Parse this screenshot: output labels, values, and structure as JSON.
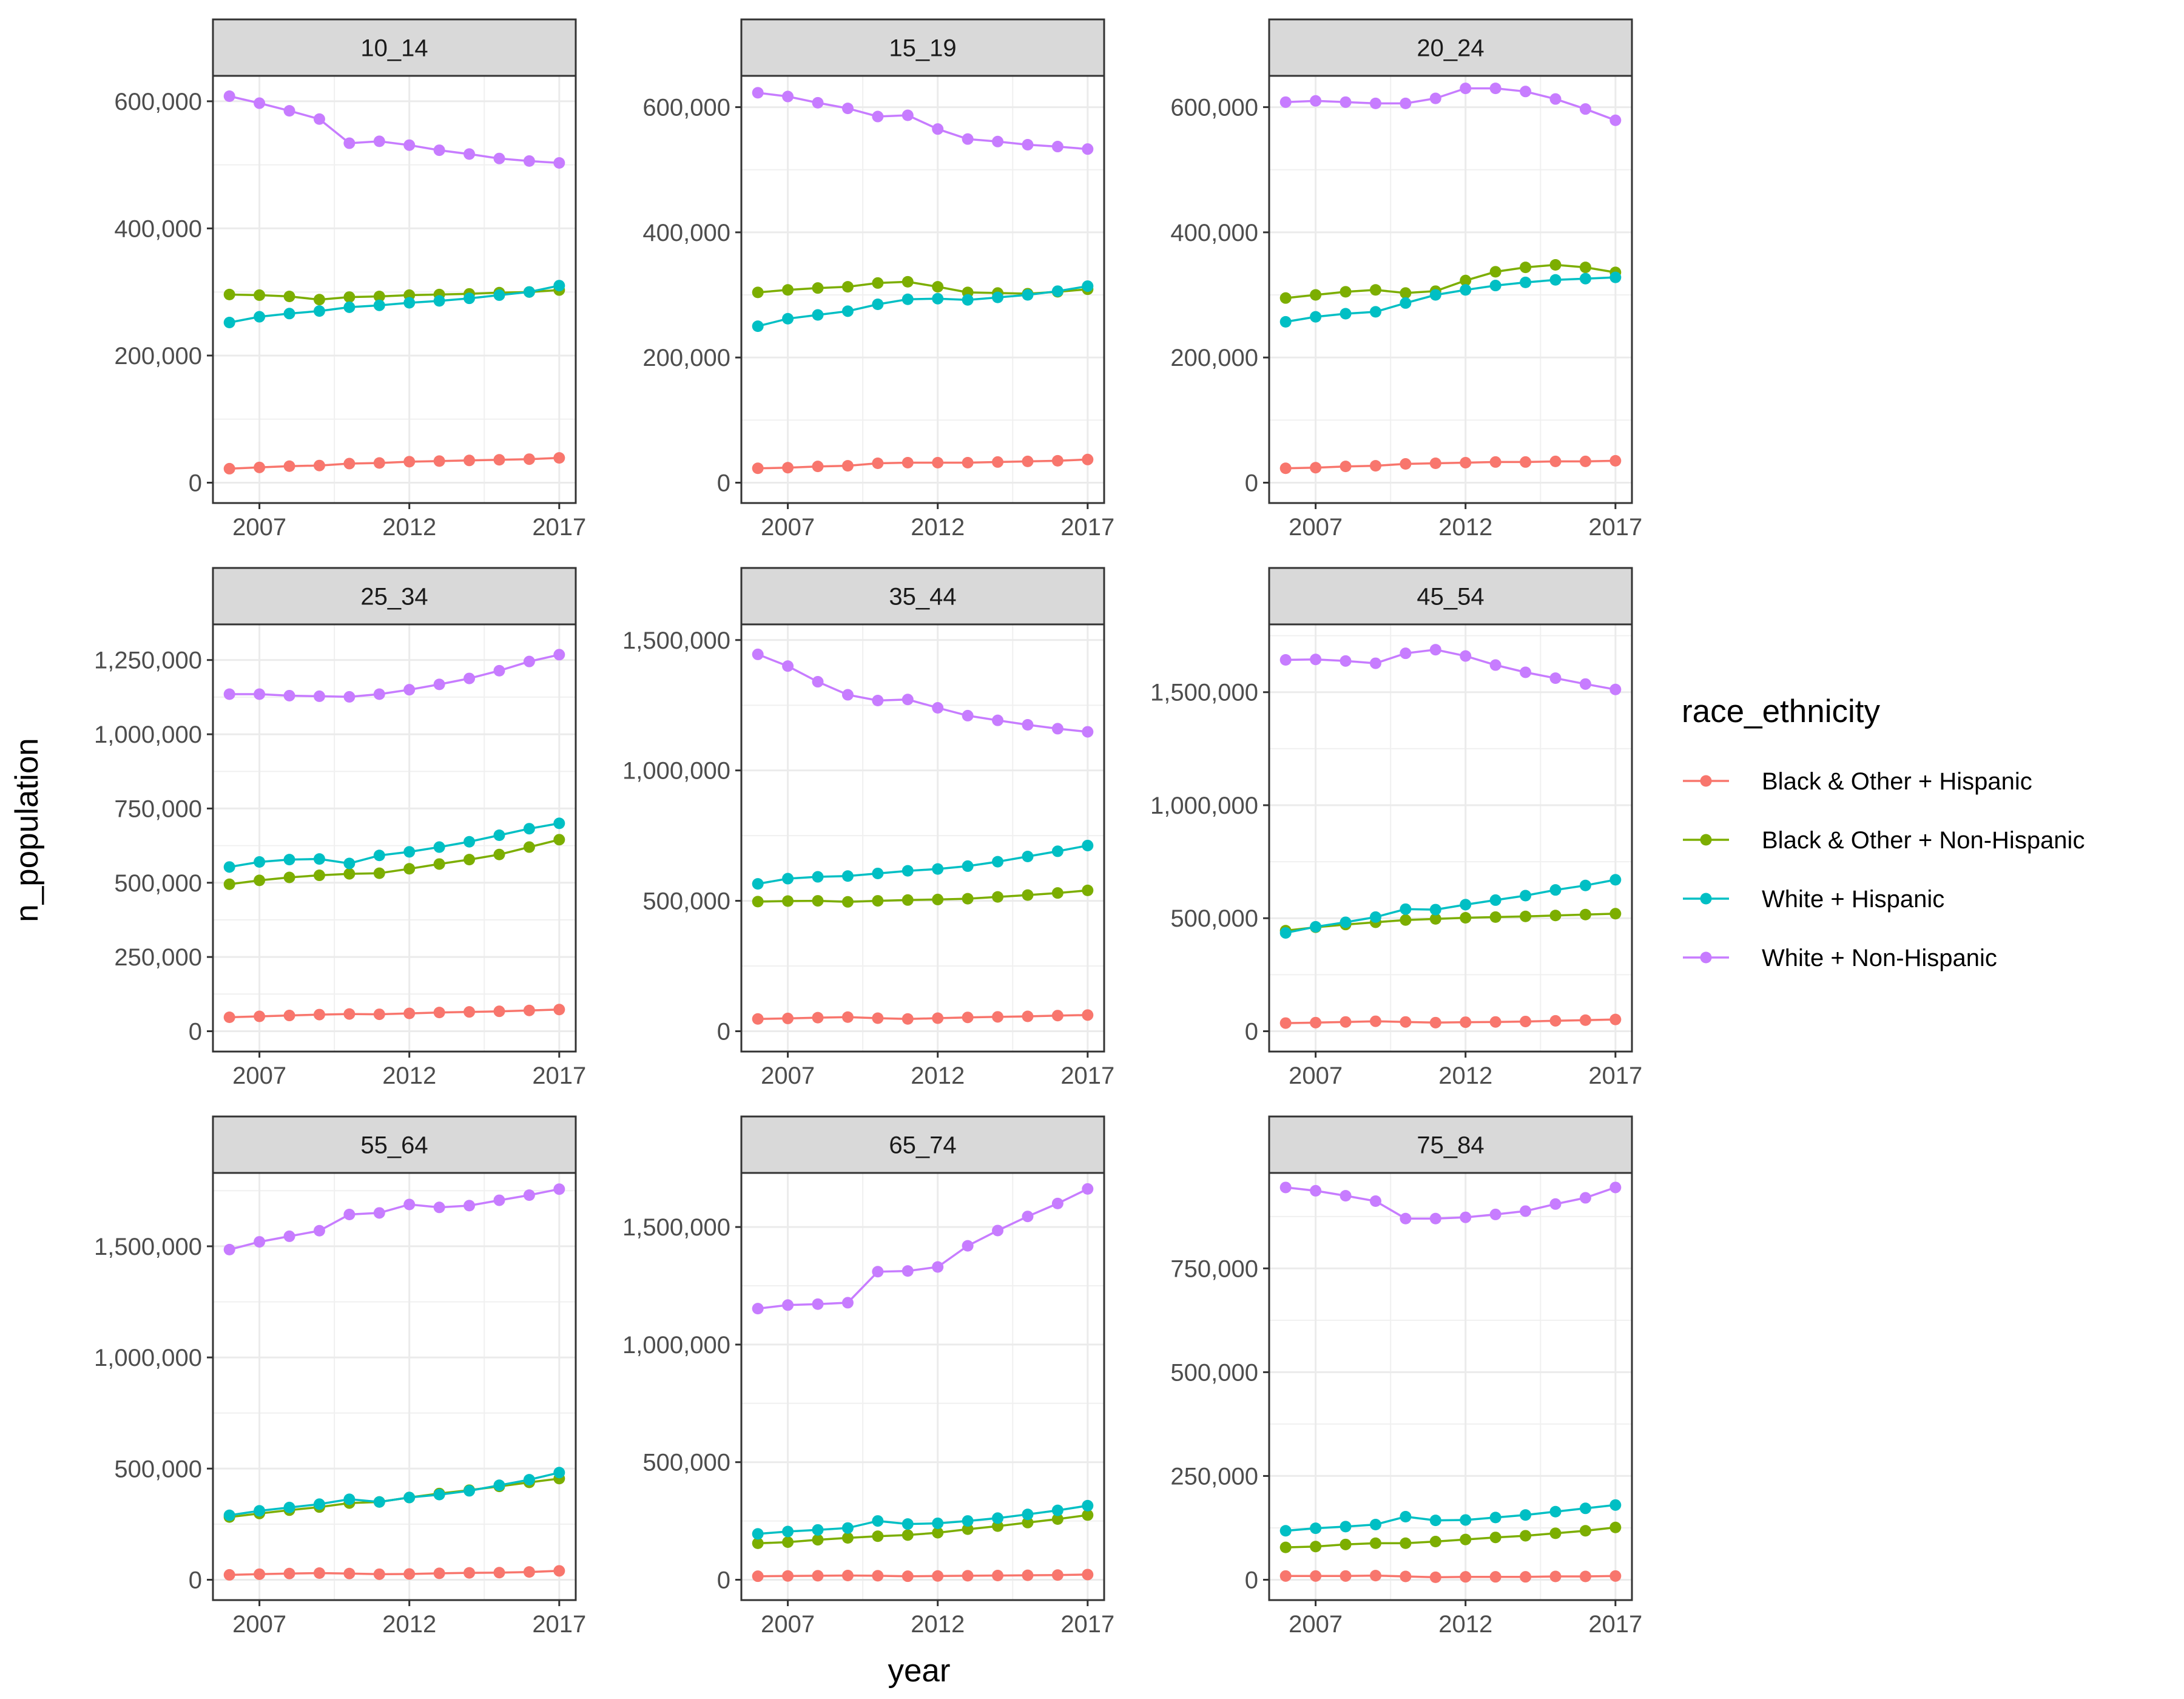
{
  "chart_data": {
    "type": "line",
    "x_label": "year",
    "y_label": "n_population",
    "x": [
      2006,
      2007,
      2008,
      2009,
      2010,
      2011,
      2012,
      2013,
      2014,
      2015,
      2016,
      2017
    ],
    "x_breaks": [
      2007,
      2012,
      2017
    ],
    "legend": {
      "title": "race_ethnicity",
      "position": "right",
      "entries": [
        "Black & Other + Hispanic",
        "Black & Other + Non-Hispanic",
        "White + Hispanic",
        "White + Non-Hispanic"
      ]
    },
    "colors": {
      "Black & Other + Hispanic": "#F8766D",
      "Black & Other + Non-Hispanic": "#7CAE00",
      "White + Hispanic": "#00BFC4",
      "White + Non-Hispanic": "#C77CFF"
    },
    "grid": true,
    "facets": [
      {
        "label": "10_14",
        "y_range": [
          0,
          640000
        ],
        "y_breaks": [
          0,
          200000,
          400000,
          600000
        ],
        "y_tick_labels": [
          "0",
          "200,000",
          "400,000",
          "600,000"
        ],
        "series": [
          {
            "name": "Black & Other + Hispanic",
            "values": [
              22000,
              24000,
              26000,
              27000,
              30000,
              31000,
              33000,
              34000,
              35000,
              36000,
              37000,
              39000
            ]
          },
          {
            "name": "Black & Other + Non-Hispanic",
            "values": [
              296000,
              295000,
              293000,
              288000,
              292000,
              293000,
              295000,
              296000,
              297000,
              299000,
              300000,
              303000
            ]
          },
          {
            "name": "White + Hispanic",
            "values": [
              252000,
              261000,
              266000,
              270000,
              276000,
              279000,
              283000,
              286000,
              290000,
              295000,
              300000,
              310000
            ]
          },
          {
            "name": "White + Non-Hispanic",
            "values": [
              608000,
              597000,
              585000,
              572000,
              534000,
              537000,
              531000,
              523000,
              517000,
              510000,
              506000,
              503000
            ]
          }
        ]
      },
      {
        "label": "15_19",
        "y_range": [
          0,
          650000
        ],
        "y_breaks": [
          0,
          200000,
          400000,
          600000
        ],
        "y_tick_labels": [
          "0",
          "200,000",
          "400,000",
          "600,000"
        ],
        "series": [
          {
            "name": "Black & Other + Hispanic",
            "values": [
              23000,
              24000,
              26000,
              27000,
              31000,
              32000,
              32000,
              32000,
              33000,
              34000,
              35000,
              37000
            ]
          },
          {
            "name": "Black & Other + Non-Hispanic",
            "values": [
              304000,
              308000,
              311000,
              313000,
              319000,
              321000,
              313000,
              304000,
              303000,
              302000,
              305000,
              309000
            ]
          },
          {
            "name": "White + Hispanic",
            "values": [
              250000,
              262000,
              268000,
              274000,
              285000,
              293000,
              294000,
              292000,
              296000,
              300000,
              306000,
              314000
            ]
          },
          {
            "name": "White + Non-Hispanic",
            "values": [
              623000,
              617000,
              607000,
              598000,
              585000,
              587000,
              565000,
              549000,
              545000,
              540000,
              537000,
              533000
            ]
          }
        ]
      },
      {
        "label": "20_24",
        "y_range": [
          0,
          650000
        ],
        "y_breaks": [
          0,
          200000,
          400000,
          600000
        ],
        "y_tick_labels": [
          "0",
          "200,000",
          "400,000",
          "600,000"
        ],
        "series": [
          {
            "name": "Black & Other + Hispanic",
            "values": [
              23000,
              24000,
              26000,
              27000,
              30000,
              31000,
              32000,
              33000,
              33000,
              34000,
              34000,
              35000
            ]
          },
          {
            "name": "Black & Other + Non-Hispanic",
            "values": [
              295000,
              300000,
              305000,
              308000,
              303000,
              306000,
              323000,
              337000,
              344000,
              348000,
              344000,
              336000
            ]
          },
          {
            "name": "White + Hispanic",
            "values": [
              257000,
              265000,
              270000,
              273000,
              287000,
              300000,
              308000,
              315000,
              320000,
              324000,
              326000,
              328000
            ]
          },
          {
            "name": "White + Non-Hispanic",
            "values": [
              608000,
              610000,
              608000,
              606000,
              606000,
              614000,
              630000,
              630000,
              625000,
              613000,
              597000,
              579000
            ]
          }
        ]
      },
      {
        "label": "25_34",
        "y_range": [
          0,
          1370000
        ],
        "y_breaks": [
          0,
          250000,
          500000,
          750000,
          1000000,
          1250000
        ],
        "y_tick_labels": [
          "0",
          "250,000",
          "500,000",
          "750,000",
          "1,000,000",
          "1,250,000"
        ],
        "series": [
          {
            "name": "Black & Other + Hispanic",
            "values": [
              47000,
              50000,
              53000,
              56000,
              58000,
              57000,
              60000,
              63000,
              65000,
              67000,
              70000,
              73000
            ]
          },
          {
            "name": "Black & Other + Non-Hispanic",
            "values": [
              495000,
              508000,
              518000,
              525000,
              530000,
              532000,
              547000,
              563000,
              578000,
              595000,
              620000,
              645000
            ]
          },
          {
            "name": "White + Hispanic",
            "values": [
              553000,
              570000,
              578000,
              580000,
              565000,
              592000,
              604000,
              620000,
              638000,
              660000,
              682000,
              700000
            ]
          },
          {
            "name": "White + Non-Hispanic",
            "values": [
              1135000,
              1135000,
              1130000,
              1128000,
              1126000,
              1135000,
              1150000,
              1168000,
              1188000,
              1214000,
              1245000,
              1268000
            ]
          }
        ]
      },
      {
        "label": "35_44",
        "y_range": [
          0,
          1560000
        ],
        "y_breaks": [
          0,
          500000,
          1000000,
          1500000
        ],
        "y_tick_labels": [
          "0",
          "500,000",
          "1,000,000",
          "1,500,000"
        ],
        "series": [
          {
            "name": "Black & Other + Hispanic",
            "values": [
              47000,
              49000,
              52000,
              54000,
              50000,
              47000,
              50000,
              53000,
              55000,
              57000,
              60000,
              62000
            ]
          },
          {
            "name": "Black & Other + Non-Hispanic",
            "values": [
              497000,
              499000,
              500000,
              496000,
              500000,
              503000,
              505000,
              508000,
              515000,
              522000,
              530000,
              540000
            ]
          },
          {
            "name": "White + Hispanic",
            "values": [
              565000,
              585000,
              592000,
              595000,
              605000,
              615000,
              622000,
              633000,
              650000,
              670000,
              690000,
              712000
            ]
          },
          {
            "name": "White + Non-Hispanic",
            "values": [
              1445000,
              1400000,
              1340000,
              1290000,
              1268000,
              1272000,
              1240000,
              1210000,
              1192000,
              1175000,
              1160000,
              1148000
            ]
          }
        ]
      },
      {
        "label": "45_54",
        "y_range": [
          0,
          1800000
        ],
        "y_breaks": [
          0,
          500000,
          1000000,
          1500000
        ],
        "y_tick_labels": [
          "0",
          "500,000",
          "1,000,000",
          "1,500,000"
        ],
        "series": [
          {
            "name": "Black & Other + Hispanic",
            "values": [
              36000,
              38000,
              41000,
              44000,
              41000,
              38000,
              40000,
              41000,
              43000,
              46000,
              49000,
              52000
            ]
          },
          {
            "name": "Black & Other + Non-Hispanic",
            "values": [
              445000,
              460000,
              472000,
              482000,
              492000,
              497000,
              502000,
              505000,
              508000,
              512000,
              516000,
              520000
            ]
          },
          {
            "name": "White + Hispanic",
            "values": [
              435000,
              462000,
              482000,
              505000,
              540000,
              538000,
              560000,
              580000,
              600000,
              625000,
              645000,
              670000
            ]
          },
          {
            "name": "White + Non-Hispanic",
            "values": [
              1643000,
              1645000,
              1638000,
              1628000,
              1672000,
              1688000,
              1660000,
              1620000,
              1588000,
              1562000,
              1536000,
              1512000
            ]
          }
        ]
      },
      {
        "label": "55_64",
        "y_range": [
          0,
          1830000
        ],
        "y_breaks": [
          0,
          500000,
          1000000,
          1500000
        ],
        "y_tick_labels": [
          "0",
          "500,000",
          "1,000,000",
          "1,500,000"
        ],
        "series": [
          {
            "name": "Black & Other + Hispanic",
            "values": [
              22000,
              25000,
              28000,
              30000,
              28000,
              25000,
              26000,
              29000,
              31000,
              32000,
              35000,
              40000
            ]
          },
          {
            "name": "Black & Other + Non-Hispanic",
            "values": [
              282000,
              298000,
              313000,
              327000,
              345000,
              350000,
              370000,
              388000,
              403000,
              420000,
              438000,
              455000
            ]
          },
          {
            "name": "White + Hispanic",
            "values": [
              290000,
              310000,
              325000,
              340000,
              362000,
              350000,
              370000,
              383000,
              400000,
              425000,
              450000,
              482000
            ]
          },
          {
            "name": "White + Non-Hispanic",
            "values": [
              1485000,
              1520000,
              1545000,
              1570000,
              1643000,
              1650000,
              1688000,
              1675000,
              1683000,
              1707000,
              1730000,
              1757000
            ]
          }
        ]
      },
      {
        "label": "65_74",
        "y_range": [
          0,
          1730000
        ],
        "y_breaks": [
          0,
          500000,
          1000000,
          1500000
        ],
        "y_tick_labels": [
          "0",
          "500,000",
          "1,000,000",
          "1,500,000"
        ],
        "series": [
          {
            "name": "Black & Other + Hispanic",
            "values": [
              15000,
              16000,
              17000,
              18000,
              17000,
              15000,
              16000,
              17000,
              18000,
              19000,
              20000,
              22000
            ]
          },
          {
            "name": "Black & Other + Non-Hispanic",
            "values": [
              155000,
              160000,
              170000,
              178000,
              185000,
              190000,
              200000,
              215000,
              228000,
              243000,
              258000,
              275000
            ]
          },
          {
            "name": "White + Hispanic",
            "values": [
              195000,
              205000,
              212000,
              220000,
              250000,
              237000,
              240000,
              250000,
              262000,
              278000,
              295000,
              315000
            ]
          },
          {
            "name": "White + Non-Hispanic",
            "values": [
              1153000,
              1168000,
              1172000,
              1178000,
              1310000,
              1313000,
              1330000,
              1420000,
              1485000,
              1545000,
              1600000,
              1662000
            ]
          }
        ]
      },
      {
        "label": "75_84",
        "y_range": [
          0,
          980000
        ],
        "y_breaks": [
          0,
          250000,
          500000,
          750000
        ],
        "y_tick_labels": [
          "0",
          "250,000",
          "500,000",
          "750,000"
        ],
        "series": [
          {
            "name": "Black & Other + Hispanic",
            "values": [
              9000,
              9000,
              9000,
              10000,
              8000,
              6000,
              7000,
              7000,
              7000,
              8000,
              8000,
              9000
            ]
          },
          {
            "name": "Black & Other + Non-Hispanic",
            "values": [
              78000,
              80000,
              85000,
              88000,
              88000,
              92000,
              97000,
              102000,
              106000,
              112000,
              118000,
              126000
            ]
          },
          {
            "name": "White + Hispanic",
            "values": [
              118000,
              124000,
              128000,
              133000,
              152000,
              143000,
              144000,
              150000,
              156000,
              164000,
              172000,
              180000
            ]
          },
          {
            "name": "White + Non-Hispanic",
            "values": [
              945000,
              937000,
              925000,
              912000,
              870000,
              870000,
              873000,
              880000,
              888000,
              905000,
              920000,
              945000
            ]
          }
        ]
      }
    ]
  }
}
